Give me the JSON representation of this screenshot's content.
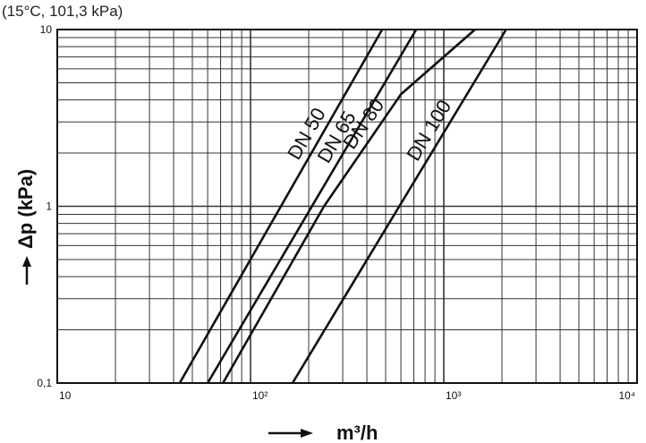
{
  "conditions": "(15°C, 101,3 kPa)",
  "chart_data": {
    "type": "line",
    "title": "",
    "xlabel": "m³/h",
    "ylabel": "Δp (kPa)",
    "xscale": "log",
    "yscale": "log",
    "xlim": [
      10,
      10000
    ],
    "ylim": [
      0.1,
      10
    ],
    "grid": true,
    "legend": "none (labels along curves)",
    "x_tick_labels": [
      "10",
      "10²",
      "10³",
      "10⁴"
    ],
    "y_tick_labels": [
      "0,1",
      "1",
      "10"
    ],
    "series": [
      {
        "name": "DN 50",
        "x": [
          43,
          480
        ],
        "y": [
          0.1,
          10
        ]
      },
      {
        "name": "DN 65",
        "x": [
          60,
          720
        ],
        "y": [
          0.1,
          10
        ]
      },
      {
        "name": "DN 80",
        "x": [
          72,
          240,
          600,
          1450
        ],
        "y": [
          0.1,
          1,
          4.3,
          10
        ]
      },
      {
        "name": "DN 100",
        "x": [
          165,
          2100
        ],
        "y": [
          0.1,
          10
        ]
      }
    ],
    "colors": {
      "line": "#111111",
      "grid": "#333333"
    }
  }
}
